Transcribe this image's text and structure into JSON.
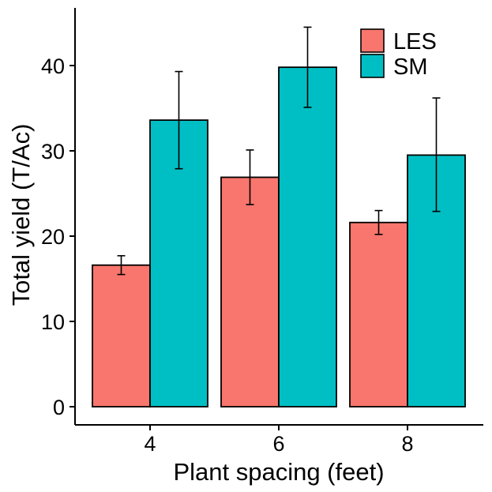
{
  "chart_data": {
    "type": "bar",
    "title": "",
    "xlabel": "Plant spacing (feet)",
    "ylabel": "Total yield (T/Ac)",
    "categories": [
      "4",
      "6",
      "8"
    ],
    "ylim": [
      0,
      46
    ],
    "yticks": [
      0,
      10,
      20,
      30,
      40
    ],
    "grid": false,
    "legend_position": "top-right",
    "series": [
      {
        "name": "LES",
        "color": "#F8766D",
        "values": [
          16.6,
          26.9,
          21.6
        ],
        "error_low": [
          15.5,
          23.7,
          20.2
        ],
        "error_high": [
          17.7,
          30.1,
          23.0
        ]
      },
      {
        "name": "SM",
        "color": "#00BFC4",
        "values": [
          33.6,
          39.8,
          29.5
        ],
        "error_low": [
          27.9,
          35.1,
          22.9
        ],
        "error_high": [
          39.3,
          44.5,
          36.2
        ]
      }
    ]
  }
}
